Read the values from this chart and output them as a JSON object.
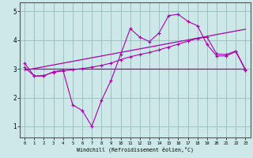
{
  "xlabel": "Windchill (Refroidissement éolien,°C)",
  "line_color": "#aa00aa",
  "bg_color": "#cce8e8",
  "plot_bg": "#cce8e8",
  "grid_color": "#99bbbb",
  "spine_color": "#555555",
  "xlim": [
    -0.5,
    23.5
  ],
  "ylim": [
    0.6,
    5.3
  ],
  "xticks": [
    0,
    1,
    2,
    3,
    4,
    5,
    6,
    7,
    8,
    9,
    10,
    11,
    12,
    13,
    14,
    15,
    16,
    17,
    18,
    19,
    20,
    21,
    22,
    23
  ],
  "yticks": [
    1,
    2,
    3,
    4,
    5
  ],
  "line1_x": [
    0,
    1,
    2,
    3,
    4,
    5,
    6,
    7,
    8,
    9,
    10,
    11,
    12,
    13,
    14,
    15,
    16,
    17,
    18,
    19,
    20,
    21,
    22,
    23
  ],
  "line1_y": [
    3.2,
    2.75,
    2.75,
    2.9,
    2.95,
    1.75,
    1.55,
    1.0,
    1.9,
    2.6,
    3.5,
    4.4,
    4.1,
    3.95,
    4.25,
    4.85,
    4.9,
    4.65,
    4.5,
    3.85,
    3.45,
    3.45,
    3.6,
    2.95
  ],
  "line2_x": [
    0,
    23
  ],
  "line2_y": [
    3.0,
    3.0
  ],
  "line3_x": [
    0,
    1,
    2,
    3,
    4,
    5,
    6,
    7,
    8,
    9,
    10,
    11,
    12,
    13,
    14,
    15,
    16,
    17,
    18,
    19,
    20,
    21,
    22,
    23
  ],
  "line3_y": [
    3.05,
    2.75,
    2.77,
    2.88,
    2.93,
    2.97,
    3.01,
    3.06,
    3.12,
    3.2,
    3.32,
    3.42,
    3.5,
    3.57,
    3.66,
    3.76,
    3.86,
    3.96,
    4.06,
    4.1,
    3.52,
    3.5,
    3.62,
    2.98
  ],
  "line4_x": [
    0,
    23
  ],
  "line4_y": [
    2.95,
    4.38
  ]
}
